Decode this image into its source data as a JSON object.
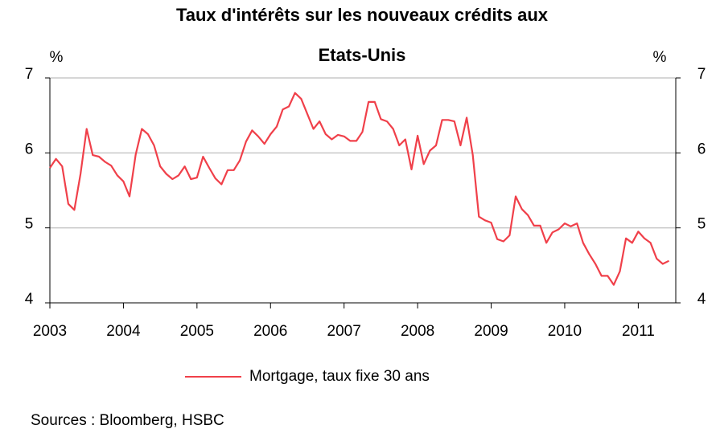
{
  "chart_data": {
    "type": "line",
    "title": [
      "Taux d'intérêts sur les nouveaux crédits aux",
      "Etats-Unis"
    ],
    "y_unit": "%",
    "y2_unit": "%",
    "source": "Sources : Bloomberg, HSBC",
    "xlim": [
      2003,
      2011.51
    ],
    "xticks": [
      2003,
      2004,
      2005,
      2006,
      2007,
      2008,
      2009,
      2010,
      2011
    ],
    "ylim": [
      4,
      7
    ],
    "yticks": [
      4,
      5,
      6,
      7
    ],
    "y2lim": [
      4,
      7
    ],
    "y2ticks": [
      4,
      5,
      6,
      7
    ],
    "grid": true,
    "legend": "bottom",
    "x": [
      2003,
      2003.083,
      2003.167,
      2003.25,
      2003.333,
      2003.417,
      2003.5,
      2003.583,
      2003.667,
      2003.75,
      2003.833,
      2003.917,
      2004,
      2004.083,
      2004.167,
      2004.25,
      2004.333,
      2004.417,
      2004.5,
      2004.583,
      2004.667,
      2004.75,
      2004.833,
      2004.917,
      2005,
      2005.083,
      2005.167,
      2005.25,
      2005.333,
      2005.417,
      2005.5,
      2005.583,
      2005.667,
      2005.75,
      2005.833,
      2005.917,
      2006,
      2006.083,
      2006.167,
      2006.25,
      2006.333,
      2006.417,
      2006.5,
      2006.583,
      2006.667,
      2006.75,
      2006.833,
      2006.917,
      2007,
      2007.083,
      2007.167,
      2007.25,
      2007.333,
      2007.417,
      2007.5,
      2007.583,
      2007.667,
      2007.75,
      2007.833,
      2007.917,
      2008,
      2008.083,
      2008.167,
      2008.25,
      2008.333,
      2008.417,
      2008.5,
      2008.583,
      2008.667,
      2008.75,
      2008.833,
      2008.917,
      2009,
      2009.083,
      2009.167,
      2009.25,
      2009.333,
      2009.417,
      2009.5,
      2009.583,
      2009.667,
      2009.75,
      2009.833,
      2009.917,
      2010,
      2010.083,
      2010.167,
      2010.25,
      2010.333,
      2010.417,
      2010.5,
      2010.583,
      2010.667,
      2010.75,
      2010.833,
      2010.917,
      2011,
      2011.083,
      2011.167,
      2011.25,
      2011.333,
      2011.417
    ],
    "series": [
      {
        "name": "Mortgage, taux fixe 30 ans",
        "color": "#f0404a",
        "values": [
          5.8,
          5.92,
          5.82,
          5.32,
          5.24,
          5.72,
          6.32,
          5.97,
          5.95,
          5.88,
          5.83,
          5.7,
          5.62,
          5.42,
          5.98,
          6.32,
          6.25,
          6.1,
          5.82,
          5.72,
          5.65,
          5.7,
          5.82,
          5.65,
          5.67,
          5.95,
          5.8,
          5.66,
          5.58,
          5.77,
          5.77,
          5.9,
          6.15,
          6.3,
          6.22,
          6.12,
          6.25,
          6.35,
          6.58,
          6.62,
          6.8,
          6.72,
          6.52,
          6.32,
          6.42,
          6.25,
          6.18,
          6.24,
          6.22,
          6.16,
          6.16,
          6.28,
          6.68,
          6.68,
          6.45,
          6.42,
          6.32,
          6.1,
          6.18,
          5.78,
          6.23,
          5.85,
          6.03,
          6.1,
          6.44,
          6.44,
          6.42,
          6.1,
          6.47,
          5.97,
          5.15,
          5.1,
          5.07,
          4.85,
          4.82,
          4.9,
          5.42,
          5.25,
          5.17,
          5.03,
          5.03,
          4.8,
          4.94,
          4.98,
          5.06,
          5.02,
          5.06,
          4.8,
          4.65,
          4.52,
          4.36,
          4.36,
          4.24,
          4.42,
          4.86,
          4.8,
          4.95,
          4.86,
          4.8,
          4.59,
          4.52,
          4.56
        ]
      }
    ]
  }
}
